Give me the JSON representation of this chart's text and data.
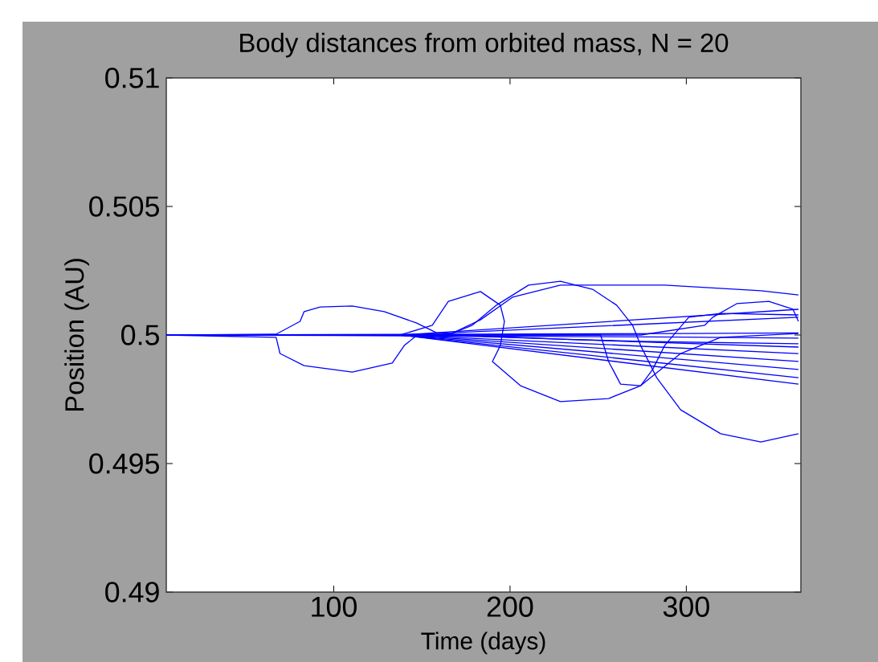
{
  "chart_data": {
    "type": "line",
    "title": "Body distances from orbited mass, N = 20",
    "xlabel": "Time (days)",
    "ylabel": "Position (AU)",
    "xlim": [
      5,
      365
    ],
    "ylim": [
      0.49,
      0.51
    ],
    "xticks": [
      100,
      200,
      300
    ],
    "yticks": [
      0.49,
      0.495,
      0.5,
      0.505,
      0.51
    ],
    "grid": false,
    "marker": "none",
    "line_style": "solid",
    "series": [
      {
        "color": "#0000ff",
        "x": [
          5,
          67.3,
          80.9,
          83.2,
          92.3,
          110.5,
          128.6,
          146.8,
          158.2,
          174.1,
          201.4,
          228.6,
          274.1,
          363.6
        ],
        "values": [
          0.5,
          0.50003,
          0.50053,
          0.50091,
          0.50109,
          0.50113,
          0.50091,
          0.50047,
          0.50009,
          0.49997,
          0.49991,
          0.49984,
          0.49975,
          0.49966
        ]
      },
      {
        "color": "#0000ff",
        "x": [
          5,
          67.3,
          69.5,
          83.2,
          110.5,
          133.2,
          140,
          146.8,
          183.2,
          363.6
        ],
        "values": [
          0.5,
          0.49991,
          0.49928,
          0.49881,
          0.49856,
          0.49891,
          0.49959,
          0.49997,
          0.49994,
          0.49953
        ]
      },
      {
        "color": "#0000ff",
        "x": [
          5,
          137.7,
          155.9,
          165,
          183.2,
          194.5,
          196.8,
          194.5,
          190,
          205.9,
          228.6,
          255.9,
          274.1,
          296.8,
          319.5,
          363.6
        ],
        "values": [
          0.5,
          0.5,
          0.50038,
          0.50131,
          0.50169,
          0.50116,
          0.50053,
          0.49959,
          0.49897,
          0.49803,
          0.49741,
          0.49753,
          0.49803,
          0.49928,
          0.49991,
          0.50006
        ]
      },
      {
        "color": "#0000ff",
        "x": [
          5,
          165,
          178.6,
          192.3,
          210.5,
          228.6,
          246.8,
          260.5,
          269.5,
          274.1,
          283.2,
          296.8,
          319.5,
          342.3,
          363.6
        ],
        "values": [
          0.5,
          0.5,
          0.50038,
          0.50116,
          0.50194,
          0.50209,
          0.50178,
          0.50116,
          0.50038,
          0.49959,
          0.49834,
          0.49709,
          0.49616,
          0.49584,
          0.49616
        ]
      },
      {
        "color": "#0000ff",
        "x": [
          5,
          165,
          183.2,
          201.4,
          228.6,
          287.7,
          342.3,
          363.6
        ],
        "values": [
          0.5,
          0.5,
          0.50059,
          0.50147,
          0.50194,
          0.50194,
          0.50172,
          0.50156
        ]
      },
      {
        "color": "#0000ff",
        "x": [
          5,
          274.1,
          310.5,
          315,
          328.6,
          346.8,
          360.5,
          363.6
        ],
        "values": [
          0.5,
          0.5,
          0.50038,
          0.50069,
          0.50122,
          0.50131,
          0.501,
          0.50053
        ]
      },
      {
        "color": "#0000ff",
        "x": [
          5,
          251.4,
          255.9,
          262.7,
          274.1,
          280.9,
          287.7,
          301.4,
          319.5,
          363.6
        ],
        "values": [
          0.5,
          0.5,
          0.49897,
          0.49809,
          0.49803,
          0.49866,
          0.49959,
          0.50069,
          0.50084,
          0.50078
        ]
      },
      {
        "color": "#0000ff",
        "x": [
          5,
          137.7,
          363.6
        ],
        "values": [
          0.5,
          0.5,
          0.501
        ]
      },
      {
        "color": "#0000ff",
        "x": [
          5,
          137.7,
          363.6
        ],
        "values": [
          0.5,
          0.5,
          0.50069
        ]
      },
      {
        "color": "#0000ff",
        "x": [
          5,
          137.7,
          363.6
        ],
        "values": [
          0.5,
          0.5,
          0.49928
        ]
      },
      {
        "color": "#0000ff",
        "x": [
          5,
          137.7,
          363.6
        ],
        "values": [
          0.5,
          0.5,
          0.49897
        ]
      },
      {
        "color": "#0000ff",
        "x": [
          5,
          137.7,
          363.6
        ],
        "values": [
          0.5,
          0.5,
          0.49866
        ]
      },
      {
        "color": "#0000ff",
        "x": [
          5,
          137.7,
          363.6
        ],
        "values": [
          0.5,
          0.5,
          0.49834
        ]
      },
      {
        "color": "#0000ff",
        "x": [
          5,
          137.7,
          363.6
        ],
        "values": [
          0.5,
          0.5,
          0.49809
        ]
      },
      {
        "color": "#0000ff",
        "x": [
          5,
          100,
          200,
          300,
          363.6
        ],
        "values": [
          0.5,
          0.49998,
          0.49995,
          0.49992,
          0.49988
        ]
      },
      {
        "color": "#0000ff",
        "x": [
          5,
          100,
          200,
          300,
          363.6
        ],
        "values": [
          0.5,
          0.50002,
          0.50004,
          0.50006,
          0.50008
        ]
      }
    ]
  }
}
